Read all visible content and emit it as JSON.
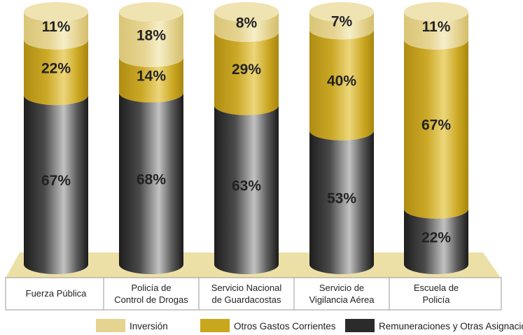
{
  "chart_data": {
    "type": "bar",
    "stacked": true,
    "style": "3d-cylinder",
    "categories": [
      [
        "Fuerza Pública"
      ],
      [
        "Policía de",
        "Control de Drogas"
      ],
      [
        "Servicio Nacional",
        "de Guardacostas"
      ],
      [
        "Servicio de",
        "Vigilancia Aérea"
      ],
      [
        "Escuela de",
        "Policía"
      ]
    ],
    "series": [
      {
        "name": "Remuneraciones y Otras Asignaciones",
        "values": [
          67,
          68,
          63,
          53,
          22
        ],
        "labels": [
          "67%",
          "68%",
          "63%",
          "53%",
          "22%"
        ]
      },
      {
        "name": "Otros Gastos Corrientes",
        "values": [
          22,
          14,
          29,
          40,
          67
        ],
        "labels": [
          "22%",
          "14%",
          "29%",
          "40%",
          "67%"
        ]
      },
      {
        "name": "Inversión",
        "values": [
          11,
          18,
          8,
          7,
          11
        ],
        "labels": [
          "11%",
          "18%",
          "8%",
          "7%",
          "11%"
        ]
      }
    ],
    "ylim": [
      0,
      100
    ],
    "unit": "%",
    "legend_position": "bottom",
    "colors": {
      "remuneraciones": "#2b2b2b",
      "otros_gastos": "#c9a71c",
      "inversion": "#e5d48f",
      "platform": "#ede0a6"
    }
  },
  "legend": [
    {
      "label": "Inversión",
      "color": "#e5d48f"
    },
    {
      "label": "Otros Gastos Corrientes",
      "color": "#c9a71c"
    },
    {
      "label": "Remuneraciones y Otras Asignaciones",
      "color": "#2b2b2b"
    }
  ]
}
